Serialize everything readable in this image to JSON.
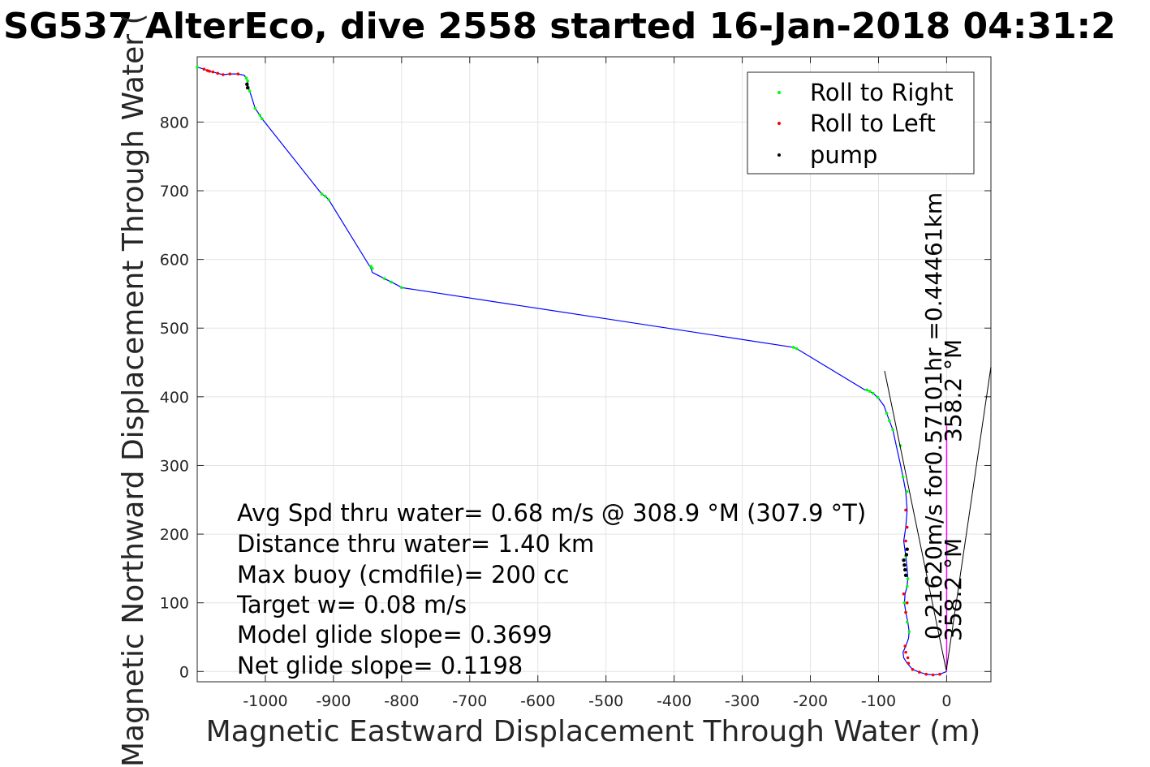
{
  "chart_data": {
    "type": "line",
    "title": "SG537 AlterEco, dive 2558 started 16-Jan-2018 04:31:2",
    "xlabel": "Magnetic Eastward Displacement Through Water (m)",
    "ylabel": "Magnetic Northward Displacement Through Water (",
    "xlim": [
      -1100,
      65
    ],
    "ylim": [
      -15,
      895
    ],
    "x_ticks": [
      -1000,
      -900,
      -800,
      -700,
      -600,
      -500,
      -400,
      -300,
      -200,
      -100,
      0
    ],
    "y_ticks": [
      0,
      100,
      200,
      300,
      400,
      500,
      600,
      700,
      800
    ],
    "x_tick_labels": [
      "-1000",
      "-900",
      "-800",
      "-700",
      "-600",
      "-500",
      "-400",
      "-300",
      "-200",
      "-100",
      "0"
    ],
    "y_tick_labels": [
      "0",
      "100",
      "200",
      "300",
      "400",
      "500",
      "600",
      "700",
      "800"
    ],
    "grid": true,
    "legend_position": "top-right",
    "legend": [
      {
        "label": "Roll to Right",
        "color": "#00ff00"
      },
      {
        "label": "Roll to Left",
        "color": "#ff0000"
      },
      {
        "label": "pump",
        "color": "#000000"
      }
    ],
    "series": [
      {
        "name": "",
        "color": "#0000ff",
        "x": [
          0,
          -10,
          -20,
          -30,
          -40,
          -50,
          -58,
          -63,
          -64,
          -60,
          -56,
          -55,
          -57,
          -60,
          -62,
          -61,
          -58,
          -57,
          -58,
          -60,
          -63,
          -60,
          -58,
          -60,
          -64,
          -68,
          -74,
          -79,
          -84,
          -88,
          -92,
          -101,
          -108,
          -113,
          -117,
          -120,
          -220,
          -225,
          -800,
          -807,
          -825,
          -835,
          -843,
          -845,
          -907,
          -912,
          -917,
          -1005,
          -1008,
          -1015,
          -1020,
          -1023,
          -1025,
          -1026,
          -1028,
          -1031,
          -1040,
          -1052,
          -1062,
          -1070,
          -1077,
          -1082,
          -1085,
          -1090,
          -1100
        ],
        "y": [
          0,
          -4,
          -5,
          -4,
          -1,
          3,
          12,
          20,
          28,
          37,
          48,
          58,
          72,
          86,
          100,
          113,
          124,
          135,
          150,
          168,
          190,
          210,
          235,
          262,
          283,
          302,
          329,
          352,
          365,
          376,
          387,
          399,
          405,
          408,
          410,
          410,
          470,
          472,
          559,
          563,
          572,
          577,
          581,
          587,
          687,
          692,
          695,
          805,
          810,
          820,
          836,
          845,
          850,
          860,
          864,
          868,
          870,
          870,
          869,
          871,
          873,
          874,
          875,
          877,
          880
        ]
      }
    ],
    "markers": {
      "roll_right": {
        "x": [
          -55,
          -58,
          -60,
          -62,
          -58,
          -57,
          -60,
          -58,
          -64,
          -68,
          -79,
          -84,
          -88,
          -101,
          -108,
          -113,
          -117,
          -220,
          -225,
          -800,
          -815,
          -825,
          -843,
          -845,
          -907,
          -912,
          -917,
          -1005,
          -1008,
          -1015,
          -1023,
          -1025,
          -1026,
          -1028,
          -1100
        ],
        "y": [
          58,
          72,
          86,
          100,
          124,
          135,
          168,
          262,
          283,
          329,
          352,
          365,
          376,
          399,
          405,
          408,
          410,
          470,
          472,
          559,
          567,
          572,
          587,
          590,
          687,
          692,
          695,
          805,
          810,
          820,
          845,
          850,
          860,
          864,
          880
        ]
      },
      "roll_left": {
        "x": [
          -10,
          -20,
          -30,
          -40,
          -50,
          -56,
          -57,
          -60,
          -61,
          -60,
          -58,
          -63,
          -60,
          -58,
          -60,
          -1040,
          -1052,
          -1062,
          -1070,
          -1077,
          -1082,
          -1085,
          -1090
        ],
        "y": [
          -4,
          -5,
          -4,
          -1,
          3,
          12,
          20,
          28,
          37,
          86,
          100,
          113,
          190,
          210,
          235,
          870,
          870,
          869,
          871,
          873,
          874,
          875,
          877
        ]
      },
      "pump": {
        "x": [
          -60,
          -61,
          -62,
          -63,
          -59,
          -58,
          -1026,
          -1027
        ],
        "y": [
          140,
          148,
          155,
          162,
          170,
          178,
          850,
          855
        ]
      }
    },
    "depth_average_current": {
      "color": "#ff00ff",
      "x": [
        0,
        0
      ],
      "y": [
        0,
        358
      ]
    },
    "annotations": [
      "Avg Spd thru water=  0.68 m/s @ 308.9 °M (307.9 °T)",
      "Distance thru water=  1.40 km",
      "Max buoy (cmdfile)= 200 cc",
      "Target w= 0.08 m/s",
      "Model glide slope= 0.3699",
      "Net glide slope= 0.1198"
    ],
    "rotated_labels": [
      "0.21620m/s for0.57101hr =0.44461km",
      "358.2 °M",
      "358.2 °M"
    ]
  }
}
